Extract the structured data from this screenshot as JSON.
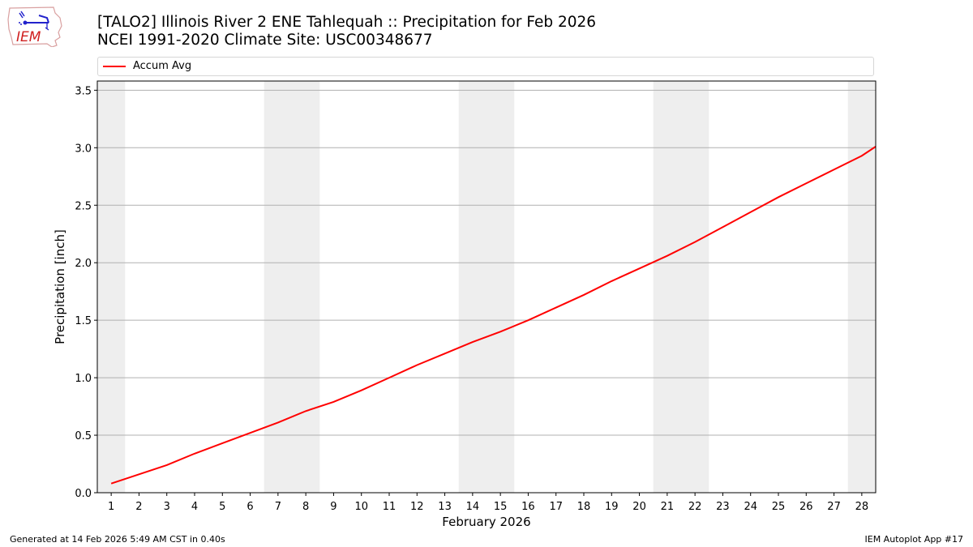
{
  "header": {
    "title_line1": "[TALO2] Illinois River 2 ENE Tahlequah :: Precipitation for Feb 2026",
    "title_line2": "NCEI 1991-2020 Climate Site: USC00348677",
    "logo_text": "IEM"
  },
  "legend": {
    "entries": [
      {
        "label": "Accum Avg",
        "color": "#ff0000"
      }
    ]
  },
  "footer": {
    "generated": "Generated at 14 Feb 2026 5:49 AM CST in 0.40s",
    "app": "IEM Autoplot App #17"
  },
  "chart_data": {
    "type": "line",
    "title": "[TALO2] Illinois River 2 ENE Tahlequah :: Precipitation for Feb 2026",
    "subtitle": "NCEI 1991-2020 Climate Site: USC00348677",
    "xlabel": "February 2026",
    "ylabel": "Precipitation [inch]",
    "x": [
      1,
      2,
      3,
      4,
      5,
      6,
      7,
      8,
      9,
      10,
      11,
      12,
      13,
      14,
      15,
      16,
      17,
      18,
      19,
      20,
      21,
      22,
      23,
      24,
      25,
      26,
      27,
      28
    ],
    "categories": [
      "1",
      "2",
      "3",
      "4",
      "5",
      "6",
      "7",
      "8",
      "9",
      "10",
      "11",
      "12",
      "13",
      "14",
      "15",
      "16",
      "17",
      "18",
      "19",
      "20",
      "21",
      "22",
      "23",
      "24",
      "25",
      "26",
      "27",
      "28"
    ],
    "series": [
      {
        "name": "Accum Avg",
        "color": "#ff0000",
        "values": [
          0.08,
          0.16,
          0.24,
          0.34,
          0.43,
          0.52,
          0.61,
          0.71,
          0.79,
          0.89,
          1.0,
          1.11,
          1.21,
          1.31,
          1.4,
          1.5,
          1.61,
          1.72,
          1.84,
          1.95,
          2.06,
          2.18,
          2.31,
          2.44,
          2.57,
          2.69,
          2.81,
          2.93
        ],
        "end_value_at_28_5": 3.01
      }
    ],
    "xlim": [
      0.5,
      28.5
    ],
    "ylim": [
      0,
      3.58
    ],
    "yticks": [
      0.0,
      0.5,
      1.0,
      1.5,
      2.0,
      2.5,
      3.0,
      3.5
    ],
    "ytick_labels": [
      "0.0",
      "0.5",
      "1.0",
      "1.5",
      "2.0",
      "2.5",
      "3.0",
      "3.5"
    ],
    "grid": {
      "y": true,
      "x": false,
      "color": "#b0b0b0"
    },
    "weekend_bands": [
      [
        0.5,
        1.5
      ],
      [
        6.5,
        8.5
      ],
      [
        13.5,
        15.5
      ],
      [
        20.5,
        22.5
      ],
      [
        27.5,
        28.5
      ]
    ],
    "band_color": "#eeeeee",
    "legend_position": "top"
  }
}
